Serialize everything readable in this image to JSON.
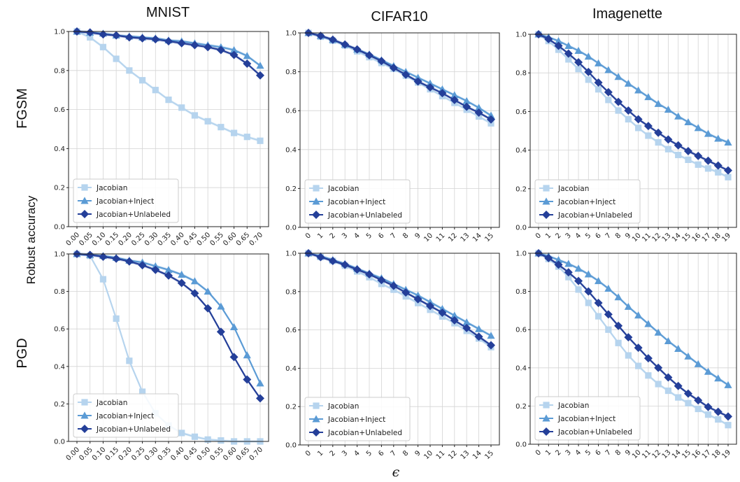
{
  "figure": {
    "column_titles": [
      "MNIST",
      "CIFAR10",
      "Imagenette"
    ],
    "row_titles": [
      "FGSM",
      "PGD"
    ],
    "shared_ylabel": "Robust accuracy",
    "shared_xlabel": "ϵ"
  },
  "colors": {
    "Jacobian": "#b6d4ee",
    "Jacobian+Inject": "#5b9bd5",
    "Jacobian+Unlabeled": "#243f99"
  },
  "legend": [
    {
      "name": "Jacobian",
      "marker": "square"
    },
    {
      "name": "Jacobian+Inject",
      "marker": "triangle"
    },
    {
      "name": "Jacobian+Unlabeled",
      "marker": "diamond"
    }
  ],
  "chart_data": [
    {
      "type": "line",
      "dataset": "MNIST",
      "attack": "FGSM",
      "x": [
        "0.00",
        "0.05",
        "0.10",
        "0.15",
        "0.20",
        "0.25",
        "0.30",
        "0.35",
        "0.40",
        "0.45",
        "0.50",
        "0.55",
        "0.60",
        "0.65",
        "0.70"
      ],
      "ylim": [
        0,
        1.0
      ],
      "yticks": [
        0.0,
        0.2,
        0.4,
        0.6,
        0.8,
        1.0
      ],
      "grid": true,
      "legend_position": "lower-left",
      "series": [
        {
          "name": "Jacobian",
          "values": [
            1.0,
            0.97,
            0.92,
            0.86,
            0.8,
            0.75,
            0.7,
            0.65,
            0.61,
            0.57,
            0.54,
            0.51,
            0.48,
            0.46,
            0.44
          ]
        },
        {
          "name": "Jacobian+Inject",
          "values": [
            1.0,
            0.995,
            0.99,
            0.98,
            0.975,
            0.97,
            0.965,
            0.955,
            0.95,
            0.94,
            0.93,
            0.92,
            0.905,
            0.875,
            0.825
          ]
        },
        {
          "name": "Jacobian+Unlabeled",
          "values": [
            1.0,
            0.995,
            0.985,
            0.98,
            0.97,
            0.965,
            0.96,
            0.95,
            0.94,
            0.93,
            0.92,
            0.905,
            0.88,
            0.835,
            0.775
          ]
        }
      ]
    },
    {
      "type": "line",
      "dataset": "CIFAR10",
      "attack": "FGSM",
      "x": [
        "0",
        "1",
        "2",
        "3",
        "4",
        "5",
        "6",
        "7",
        "8",
        "9",
        "10",
        "11",
        "12",
        "13",
        "14",
        "15"
      ],
      "ylim": [
        0,
        1.0
      ],
      "yticks": [
        0.0,
        0.2,
        0.4,
        0.6,
        0.8,
        1.0
      ],
      "grid": true,
      "legend_position": "lower-left",
      "series": [
        {
          "name": "Jacobian",
          "values": [
            1.0,
            0.98,
            0.96,
            0.935,
            0.905,
            0.875,
            0.845,
            0.815,
            0.78,
            0.745,
            0.71,
            0.675,
            0.64,
            0.605,
            0.57,
            0.535
          ]
        },
        {
          "name": "Jacobian+Inject",
          "values": [
            1.0,
            0.985,
            0.965,
            0.94,
            0.915,
            0.89,
            0.86,
            0.83,
            0.8,
            0.77,
            0.74,
            0.71,
            0.68,
            0.65,
            0.615,
            0.575
          ]
        },
        {
          "name": "Jacobian+Unlabeled",
          "values": [
            1.0,
            0.985,
            0.965,
            0.94,
            0.915,
            0.885,
            0.855,
            0.82,
            0.785,
            0.75,
            0.72,
            0.69,
            0.655,
            0.62,
            0.59,
            0.555
          ]
        }
      ]
    },
    {
      "type": "line",
      "dataset": "Imagenette",
      "attack": "FGSM",
      "x": [
        "0",
        "1",
        "2",
        "3",
        "4",
        "5",
        "6",
        "7",
        "8",
        "9",
        "10",
        "11",
        "12",
        "13",
        "14",
        "15",
        "16",
        "17",
        "18",
        "19"
      ],
      "ylim": [
        0,
        1.0
      ],
      "yticks": [
        0.0,
        0.2,
        0.4,
        0.6,
        0.8,
        1.0
      ],
      "grid": true,
      "legend_position": "lower-left",
      "series": [
        {
          "name": "Jacobian",
          "values": [
            1.0,
            0.965,
            0.92,
            0.87,
            0.82,
            0.765,
            0.715,
            0.66,
            0.605,
            0.56,
            0.515,
            0.475,
            0.44,
            0.405,
            0.375,
            0.35,
            0.325,
            0.305,
            0.285,
            0.26
          ]
        },
        {
          "name": "Jacobian+Inject",
          "values": [
            1.0,
            0.985,
            0.965,
            0.94,
            0.915,
            0.885,
            0.85,
            0.815,
            0.78,
            0.745,
            0.71,
            0.675,
            0.64,
            0.61,
            0.575,
            0.545,
            0.515,
            0.485,
            0.46,
            0.44
          ]
        },
        {
          "name": "Jacobian+Unlabeled",
          "values": [
            1.0,
            0.975,
            0.94,
            0.9,
            0.855,
            0.805,
            0.75,
            0.7,
            0.65,
            0.605,
            0.56,
            0.525,
            0.49,
            0.455,
            0.425,
            0.395,
            0.37,
            0.345,
            0.32,
            0.295
          ]
        }
      ]
    },
    {
      "type": "line",
      "dataset": "MNIST",
      "attack": "PGD",
      "x": [
        "0.00",
        "0.05",
        "0.10",
        "0.15",
        "0.20",
        "0.25",
        "0.30",
        "0.35",
        "0.40",
        "0.45",
        "0.50",
        "0.55",
        "0.60",
        "0.65",
        "0.70"
      ],
      "ylim": [
        0,
        1.0
      ],
      "yticks": [
        0.0,
        0.2,
        0.4,
        0.6,
        0.8,
        1.0
      ],
      "grid": true,
      "legend_position": "lower-left",
      "series": [
        {
          "name": "Jacobian",
          "values": [
            1.0,
            0.99,
            0.865,
            0.655,
            0.43,
            0.265,
            0.15,
            0.085,
            0.045,
            0.025,
            0.01,
            0.005,
            0.0,
            0.0,
            0.0
          ]
        },
        {
          "name": "Jacobian+Inject",
          "values": [
            1.0,
            0.995,
            0.99,
            0.98,
            0.965,
            0.955,
            0.935,
            0.915,
            0.89,
            0.855,
            0.8,
            0.72,
            0.61,
            0.46,
            0.31
          ]
        },
        {
          "name": "Jacobian+Unlabeled",
          "values": [
            1.0,
            0.995,
            0.985,
            0.975,
            0.96,
            0.94,
            0.915,
            0.885,
            0.845,
            0.79,
            0.71,
            0.585,
            0.45,
            0.33,
            0.23
          ]
        }
      ]
    },
    {
      "type": "line",
      "dataset": "CIFAR10",
      "attack": "PGD",
      "x": [
        "0",
        "1",
        "2",
        "3",
        "4",
        "5",
        "6",
        "7",
        "8",
        "9",
        "10",
        "11",
        "12",
        "13",
        "14",
        "15"
      ],
      "ylim": [
        0,
        1.0
      ],
      "yticks": [
        0.0,
        0.2,
        0.4,
        0.6,
        0.8,
        1.0
      ],
      "grid": true,
      "legend_position": "lower-left",
      "series": [
        {
          "name": "Jacobian",
          "values": [
            1.0,
            0.98,
            0.96,
            0.935,
            0.905,
            0.875,
            0.84,
            0.81,
            0.775,
            0.74,
            0.705,
            0.67,
            0.635,
            0.595,
            0.555,
            0.51
          ]
        },
        {
          "name": "Jacobian+Inject",
          "values": [
            1.0,
            0.985,
            0.965,
            0.945,
            0.92,
            0.895,
            0.87,
            0.84,
            0.81,
            0.78,
            0.745,
            0.71,
            0.675,
            0.64,
            0.605,
            0.57
          ]
        },
        {
          "name": "Jacobian+Unlabeled",
          "values": [
            1.0,
            0.98,
            0.96,
            0.94,
            0.915,
            0.89,
            0.86,
            0.83,
            0.795,
            0.76,
            0.725,
            0.69,
            0.65,
            0.61,
            0.565,
            0.52
          ]
        }
      ]
    },
    {
      "type": "line",
      "dataset": "Imagenette",
      "attack": "PGD",
      "x": [
        "0",
        "1",
        "2",
        "3",
        "4",
        "5",
        "6",
        "7",
        "8",
        "9",
        "10",
        "11",
        "12",
        "13",
        "14",
        "15",
        "16",
        "17",
        "18",
        "19"
      ],
      "ylim": [
        0,
        1.0
      ],
      "yticks": [
        0.0,
        0.2,
        0.4,
        0.6,
        0.8,
        1.0
      ],
      "grid": true,
      "legend_position": "lower-left",
      "series": [
        {
          "name": "Jacobian",
          "values": [
            1.0,
            0.97,
            0.93,
            0.875,
            0.81,
            0.74,
            0.67,
            0.6,
            0.53,
            0.465,
            0.41,
            0.36,
            0.315,
            0.28,
            0.245,
            0.215,
            0.185,
            0.155,
            0.13,
            0.1
          ]
        },
        {
          "name": "Jacobian+Inject",
          "values": [
            1.0,
            0.985,
            0.965,
            0.945,
            0.92,
            0.89,
            0.855,
            0.815,
            0.77,
            0.72,
            0.675,
            0.63,
            0.585,
            0.54,
            0.5,
            0.46,
            0.42,
            0.38,
            0.345,
            0.31
          ]
        },
        {
          "name": "Jacobian+Unlabeled",
          "values": [
            1.0,
            0.975,
            0.94,
            0.9,
            0.855,
            0.8,
            0.74,
            0.68,
            0.62,
            0.56,
            0.505,
            0.45,
            0.4,
            0.35,
            0.305,
            0.265,
            0.23,
            0.195,
            0.17,
            0.145
          ]
        }
      ]
    }
  ]
}
